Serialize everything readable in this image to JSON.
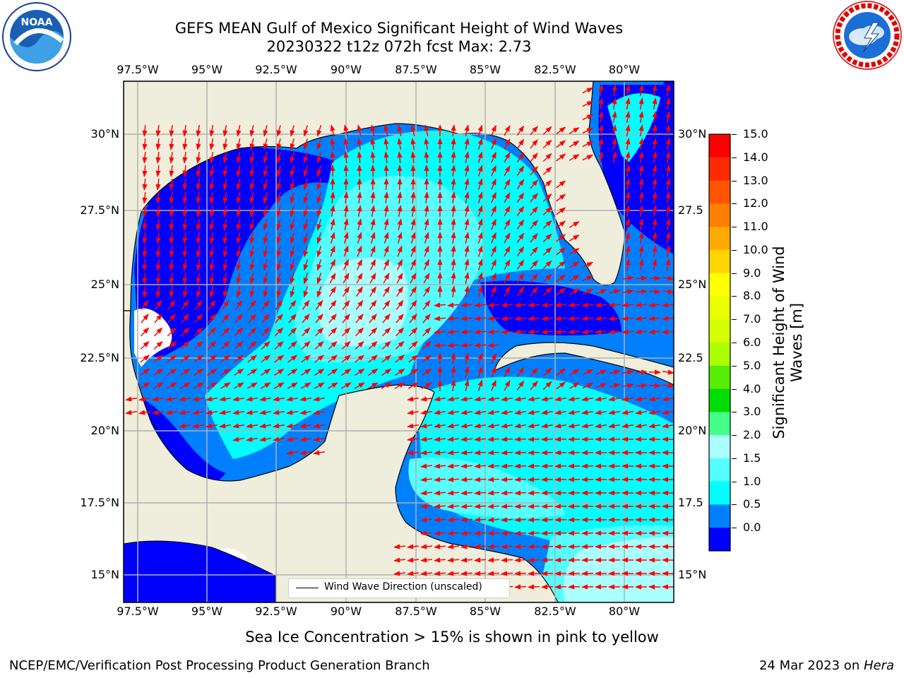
{
  "title_line1": "GEFS MEAN Gulf of Mexico Significant Height of Wind Waves",
  "title_line2": "20230322 t12z 072h fcst   Max: 2.73",
  "lon_ticks": [
    "97.5°W",
    "95°W",
    "92.5°W",
    "90°W",
    "87.5°W",
    "85°W",
    "82.5°W",
    "80°W"
  ],
  "lat_ticks": [
    "30°N",
    "27.5°N",
    "25°N",
    "22.5°N",
    "20°N",
    "17.5°N",
    "15°N"
  ],
  "lat_ticks_right": [
    "30°N",
    "27.5",
    "25°N",
    "22.5",
    "20°N",
    "17.5",
    "15°N"
  ],
  "colorbar": {
    "label_line1": "Significant Height of Wind",
    "label_line2": "Waves [m]",
    "ticks": [
      "15.0",
      "14.0",
      "13.0",
      "12.0",
      "11.0",
      "10.0",
      "9.0",
      "8.0",
      "7.0",
      "6.0",
      "5.0",
      "4.0",
      "3.0",
      "2.0",
      "1.5",
      "1.0",
      "0.5",
      "0.0"
    ],
    "colors": [
      "#ff0000",
      "#ff2a00",
      "#ff5500",
      "#ff8000",
      "#ffaa00",
      "#ffd400",
      "#ffff00",
      "#eaff00",
      "#d4ff00",
      "#aaff00",
      "#55ee00",
      "#00dd00",
      "#44ff88",
      "#aaffff",
      "#55ffff",
      "#00ffff",
      "#0080ff",
      "#0000ff"
    ]
  },
  "legend_label": "Wind Wave Direction (unscaled)",
  "ice_note": "Sea Ice Concentration > 15% is shown in pink to yellow",
  "footer_left": "NCEP/EMC/Verification Post Processing Product Generation Branch",
  "footer_right_date": "24 Mar 2023 on ",
  "footer_right_host": "Hera",
  "logo_left": "NOAA",
  "colors": {
    "land": "#efeedc",
    "water_dark": "#0000ff",
    "water_mid": "#0080ff",
    "water_cyan": "#00ffff",
    "water_light": "#55ffff",
    "water_pale": "#aaffff",
    "arrow": "#ff0000"
  }
}
